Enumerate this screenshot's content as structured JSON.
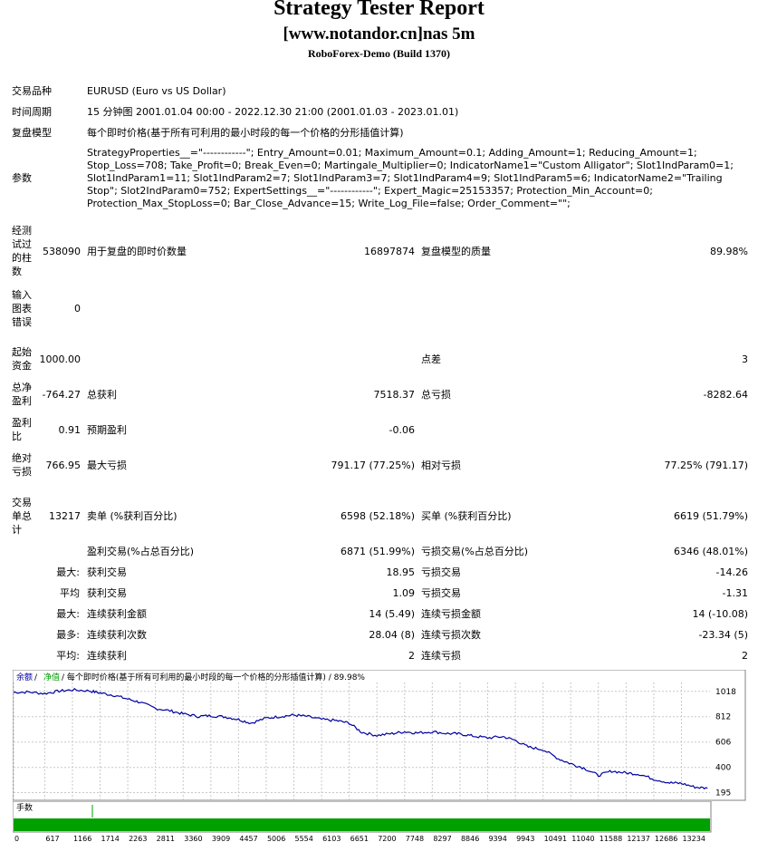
{
  "header": {
    "title": "Strategy Tester Report",
    "subtitle": "[www.notandor.cn]nas 5m",
    "build": "RoboForex-Demo (Build 1370)"
  },
  "info": {
    "symbol_label": "交易品种",
    "symbol_value": "EURUSD (Euro vs US Dollar)",
    "period_label": "时间周期",
    "period_value": "15 分钟图 2001.01.04 00:00 - 2022.12.30 21:00 (2001.01.03 - 2023.01.01)",
    "model_label": "复盘模型",
    "model_value": "每个即时价格(基于所有可利用的最小时段的每一个价格的分形插值计算)",
    "params_label": "参数",
    "params_value": "StrategyProperties__=\"------------\"; Entry_Amount=0.01; Maximum_Amount=0.1; Adding_Amount=1; Reducing_Amount=1; Stop_Loss=708; Take_Profit=0; Break_Even=0; Martingale_Multiplier=0; IndicatorName1=\"Custom Alligator\"; Slot1IndParam0=1; Slot1IndParam1=11; Slot1IndParam2=7; Slot1IndParam3=7; Slot1IndParam4=9; Slot1IndParam5=6; IndicatorName2=\"Trailing Stop\"; Slot2IndParam0=752; ExpertSettings__=\"------------\"; Expert_Magic=25153357; Protection_Min_Account=0; Protection_Max_StopLoss=0; Bar_Close_Advance=15; Write_Log_File=false; Order_Comment=\"\";"
  },
  "stats": {
    "bars_label": [
      "经测",
      "试过",
      "的柱",
      "数"
    ],
    "bars_value": "538090",
    "ticks_label": "用于复盘的即时价数量",
    "ticks_value": "16897874",
    "quality_label": "复盘模型的质量",
    "quality_value": "89.98%",
    "errors_label": [
      "输入",
      "图表",
      "错误"
    ],
    "errors_value": "0",
    "deposit_label": [
      "起始",
      "资金"
    ],
    "deposit_value": "1000.00",
    "spread_label": "点差",
    "spread_value": "3",
    "netprofit_label": [
      "总净",
      "盈利"
    ],
    "netprofit_value": "-764.27",
    "grossprofit_label": "总获利",
    "grossprofit_value": "7518.37",
    "grossloss_label": "总亏损",
    "grossloss_value": "-8282.64",
    "pf_label": [
      "盈利",
      "比"
    ],
    "pf_value": "0.91",
    "payoff_label": "预期盈利",
    "payoff_value": "-0.06",
    "absdd_label": [
      "绝对",
      "亏损"
    ],
    "absdd_value": "766.95",
    "maxdd_label": "最大亏损",
    "maxdd_value": "791.17 (77.25%)",
    "reldd_label": "相对亏损",
    "reldd_value": "77.25% (791.17)",
    "trades_label": [
      "交易",
      "单总",
      "计"
    ],
    "trades_value": "13217",
    "short_label": "卖单 (%获利百分比)",
    "short_value": "6598 (52.18%)",
    "long_label": "买单 (%获利百分比)",
    "long_value": "6619 (51.79%)",
    "profit_trades_label": "盈利交易(%占总百分比)",
    "profit_trades_value": "6871 (51.99%)",
    "loss_trades_label": "亏损交易(%占总百分比)",
    "loss_trades_value": "6346 (48.01%)",
    "rows": [
      {
        "prefix": "最大:",
        "l": "获利交易",
        "lv": "18.95",
        "r": "亏损交易",
        "rv": "-14.26"
      },
      {
        "prefix": "平均",
        "l": "获利交易",
        "lv": "1.09",
        "r": "亏损交易",
        "rv": "-1.31"
      },
      {
        "prefix": "最大:",
        "l": "连续获利金额",
        "lv": "14 (5.49)",
        "r": "连续亏损金额",
        "rv": "14 (-10.08)"
      },
      {
        "prefix": "最多:",
        "l": "连续获利次数",
        "lv": "28.04 (8)",
        "r": "连续亏损次数",
        "rv": "-23.34 (5)"
      },
      {
        "prefix": "平均:",
        "l": "连续获利",
        "lv": "2",
        "r": "连续亏损",
        "rv": "2"
      }
    ]
  },
  "chart_data": {
    "type": "line",
    "legend_balance": "余额",
    "legend_sep": " / ",
    "legend_equity": "净值",
    "legend_rest": " / 每个即时价格(基于所有可利用的最小时段的每一个价格的分形插值计算) / 89.98%",
    "y_ticks": [
      1018,
      812,
      606,
      400,
      195
    ],
    "x_ticks": [
      0,
      617,
      1166,
      1714,
      2263,
      2811,
      3360,
      3909,
      4457,
      5006,
      5554,
      6103,
      6651,
      7200,
      7748,
      8297,
      8846,
      9394,
      9943,
      10491,
      11040,
      11588,
      12137,
      12686,
      13234
    ],
    "xlim": [
      0,
      13800
    ],
    "ylim": [
      140,
      1090
    ],
    "x": [
      0,
      300,
      617,
      900,
      1166,
      1500,
      1714,
      2000,
      2263,
      2500,
      2811,
      3100,
      3360,
      3650,
      3909,
      4200,
      4457,
      4700,
      5006,
      5300,
      5554,
      5800,
      6103,
      6400,
      6651,
      6900,
      7200,
      7500,
      7748,
      8000,
      8297,
      8600,
      8846,
      9100,
      9394,
      9700,
      9943,
      10200,
      10491,
      10800,
      11040,
      11300,
      11588,
      11850,
      12137,
      12400,
      12686,
      13000,
      13234,
      13500,
      13750
    ],
    "values": [
      1010,
      1012,
      1000,
      1020,
      1030,
      1022,
      1005,
      985,
      955,
      930,
      880,
      860,
      835,
      815,
      820,
      810,
      790,
      760,
      800,
      815,
      825,
      815,
      790,
      780,
      760,
      685,
      660,
      675,
      690,
      680,
      690,
      675,
      672,
      655,
      640,
      650,
      620,
      565,
      545,
      470,
      430,
      395,
      335,
      370,
      355,
      345,
      305,
      275,
      270,
      240,
      230
    ],
    "balance_color": "#0000a0",
    "equity_color": "#00a000",
    "hand_label": "手数",
    "hand_color": "#00a000"
  }
}
